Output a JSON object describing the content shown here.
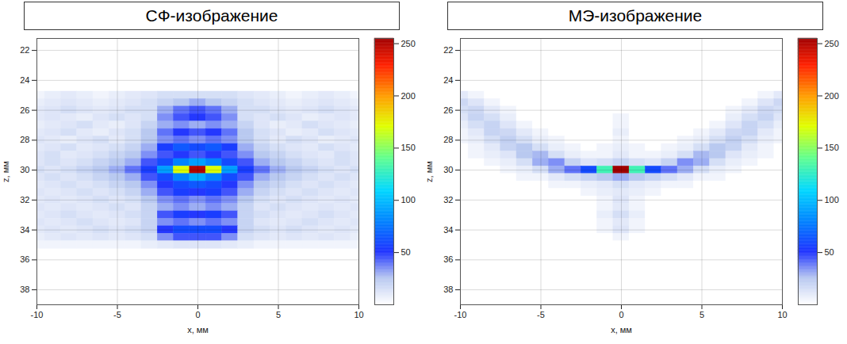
{
  "chart_data": [
    {
      "type": "heatmap",
      "title": "СФ-изображение",
      "x_label": "x, мм",
      "y_label": "z, мм",
      "xlim": [
        -10,
        10
      ],
      "ylim": [
        39,
        21.2
      ],
      "xticks": [
        -10,
        -5,
        0,
        5,
        10
      ],
      "yticks": [
        22,
        24,
        26,
        28,
        30,
        32,
        34,
        36,
        38
      ],
      "grid": true,
      "colorbar_lim": [
        0,
        255
      ],
      "colorbar_ticks": [
        50,
        100,
        150,
        200,
        250
      ],
      "x": [
        -10,
        -9,
        -8,
        -7,
        -6,
        -5,
        -4,
        -3,
        -2,
        -1,
        0,
        1,
        2,
        3,
        4,
        5,
        6,
        7,
        8,
        9,
        10
      ],
      "y": [
        25,
        25.5,
        26,
        26.5,
        27,
        27.5,
        28,
        28.5,
        29,
        29.5,
        30,
        30.5,
        31,
        31.5,
        32,
        32.5,
        33,
        33.5,
        34,
        34.5,
        35
      ],
      "cells": [
        [
          5,
          8,
          10,
          8,
          5,
          8,
          10,
          12,
          15,
          15,
          15,
          15,
          15,
          12,
          10,
          8,
          5,
          8,
          10,
          8,
          5
        ],
        [
          8,
          10,
          12,
          10,
          8,
          10,
          12,
          15,
          20,
          25,
          30,
          25,
          20,
          15,
          12,
          10,
          8,
          10,
          12,
          10,
          8
        ],
        [
          10,
          12,
          15,
          12,
          10,
          12,
          15,
          15,
          30,
          40,
          45,
          40,
          30,
          15,
          15,
          12,
          10,
          12,
          15,
          12,
          10
        ],
        [
          10,
          12,
          10,
          8,
          12,
          15,
          12,
          15,
          35,
          45,
          50,
          45,
          35,
          15,
          12,
          15,
          12,
          8,
          10,
          12,
          10
        ],
        [
          8,
          10,
          12,
          15,
          10,
          8,
          12,
          20,
          30,
          35,
          30,
          35,
          30,
          20,
          12,
          8,
          10,
          15,
          12,
          10,
          8
        ],
        [
          10,
          12,
          15,
          10,
          8,
          12,
          15,
          25,
          40,
          50,
          45,
          50,
          40,
          25,
          15,
          12,
          8,
          10,
          15,
          12,
          10
        ],
        [
          12,
          10,
          8,
          12,
          15,
          10,
          15,
          25,
          35,
          40,
          35,
          40,
          35,
          25,
          15,
          10,
          15,
          12,
          8,
          10,
          12
        ],
        [
          10,
          12,
          15,
          10,
          12,
          15,
          20,
          30,
          55,
          65,
          60,
          65,
          55,
          30,
          20,
          15,
          12,
          10,
          15,
          12,
          10
        ],
        [
          12,
          15,
          10,
          12,
          15,
          20,
          25,
          35,
          45,
          50,
          45,
          50,
          45,
          35,
          25,
          20,
          15,
          12,
          10,
          15,
          12
        ],
        [
          12,
          15,
          12,
          15,
          20,
          25,
          30,
          45,
          60,
          80,
          90,
          80,
          60,
          45,
          30,
          25,
          20,
          15,
          12,
          15,
          12
        ],
        [
          15,
          12,
          15,
          20,
          25,
          30,
          40,
          55,
          90,
          170,
          250,
          170,
          90,
          55,
          40,
          30,
          25,
          20,
          15,
          12,
          15
        ],
        [
          12,
          15,
          12,
          15,
          20,
          25,
          30,
          45,
          60,
          80,
          95,
          80,
          60,
          45,
          30,
          25,
          20,
          15,
          12,
          15,
          12
        ],
        [
          10,
          12,
          15,
          12,
          15,
          20,
          25,
          35,
          50,
          60,
          65,
          60,
          50,
          35,
          25,
          20,
          15,
          12,
          15,
          12,
          10
        ],
        [
          12,
          10,
          12,
          15,
          12,
          15,
          20,
          30,
          45,
          55,
          50,
          55,
          45,
          30,
          20,
          15,
          12,
          15,
          12,
          10,
          12
        ],
        [
          10,
          12,
          10,
          12,
          15,
          12,
          15,
          25,
          35,
          40,
          35,
          40,
          35,
          25,
          15,
          12,
          15,
          12,
          10,
          12,
          10
        ],
        [
          12,
          10,
          12,
          10,
          12,
          15,
          12,
          20,
          30,
          35,
          30,
          35,
          30,
          20,
          12,
          15,
          12,
          10,
          12,
          10,
          12
        ],
        [
          10,
          12,
          15,
          12,
          10,
          12,
          15,
          20,
          45,
          55,
          50,
          55,
          45,
          20,
          15,
          12,
          10,
          12,
          15,
          12,
          10
        ],
        [
          12,
          10,
          12,
          15,
          12,
          10,
          12,
          20,
          35,
          40,
          35,
          40,
          35,
          20,
          12,
          10,
          12,
          15,
          12,
          10,
          12
        ],
        [
          10,
          12,
          10,
          12,
          15,
          12,
          15,
          20,
          50,
          60,
          60,
          60,
          50,
          20,
          15,
          12,
          15,
          12,
          10,
          12,
          10
        ],
        [
          8,
          10,
          12,
          10,
          12,
          10,
          12,
          15,
          35,
          45,
          45,
          45,
          35,
          15,
          12,
          10,
          12,
          10,
          12,
          10,
          8
        ],
        [
          5,
          5,
          5,
          5,
          5,
          5,
          5,
          8,
          10,
          12,
          12,
          12,
          10,
          8,
          5,
          5,
          5,
          5,
          5,
          5,
          5
        ]
      ]
    },
    {
      "type": "heatmap",
      "title": "МЭ-изображение",
      "x_label": "x, мм",
      "y_label": "z, мм",
      "xlim": [
        -10,
        10
      ],
      "ylim": [
        39,
        21.2
      ],
      "xticks": [
        -10,
        -5,
        0,
        5,
        10
      ],
      "yticks": [
        22,
        24,
        26,
        28,
        30,
        32,
        34,
        36,
        38
      ],
      "grid": true,
      "colorbar_lim": [
        0,
        255
      ],
      "colorbar_ticks": [
        50,
        100,
        150,
        200,
        250
      ],
      "x": [
        -10,
        -9,
        -8,
        -7,
        -6,
        -5,
        -4,
        -3,
        -2,
        -1,
        0,
        1,
        2,
        3,
        4,
        5,
        6,
        7,
        8,
        9,
        10
      ],
      "y": [
        25,
        25.5,
        26,
        26.5,
        27,
        27.5,
        28,
        28.5,
        29,
        29.5,
        30,
        30.5,
        31,
        31.5,
        32,
        32.5,
        33,
        33.5,
        34,
        34.5,
        35
      ],
      "cells": [
        [
          10,
          5,
          0,
          0,
          0,
          0,
          0,
          0,
          0,
          0,
          0,
          0,
          0,
          0,
          0,
          0,
          0,
          0,
          0,
          5,
          10
        ],
        [
          18,
          12,
          5,
          0,
          0,
          0,
          0,
          0,
          0,
          0,
          0,
          0,
          0,
          0,
          0,
          0,
          0,
          0,
          5,
          12,
          18
        ],
        [
          15,
          18,
          10,
          5,
          0,
          0,
          0,
          0,
          0,
          0,
          0,
          0,
          0,
          0,
          0,
          0,
          0,
          5,
          10,
          18,
          15
        ],
        [
          12,
          20,
          15,
          8,
          0,
          0,
          0,
          0,
          0,
          0,
          5,
          0,
          0,
          0,
          0,
          0,
          0,
          8,
          15,
          20,
          12
        ],
        [
          8,
          15,
          20,
          12,
          5,
          0,
          0,
          0,
          0,
          0,
          5,
          0,
          0,
          0,
          0,
          0,
          5,
          12,
          20,
          15,
          8
        ],
        [
          5,
          10,
          20,
          18,
          10,
          5,
          0,
          0,
          0,
          0,
          8,
          0,
          0,
          0,
          0,
          5,
          10,
          18,
          20,
          10,
          5
        ],
        [
          5,
          8,
          15,
          22,
          15,
          8,
          5,
          0,
          0,
          0,
          5,
          0,
          0,
          0,
          5,
          8,
          15,
          22,
          15,
          8,
          5
        ],
        [
          0,
          5,
          10,
          20,
          25,
          15,
          8,
          5,
          0,
          5,
          8,
          5,
          0,
          5,
          8,
          15,
          25,
          20,
          10,
          5,
          0
        ],
        [
          0,
          5,
          8,
          12,
          25,
          28,
          15,
          8,
          5,
          5,
          10,
          5,
          5,
          8,
          15,
          28,
          25,
          12,
          8,
          5,
          0
        ],
        [
          0,
          0,
          5,
          8,
          15,
          30,
          35,
          20,
          12,
          15,
          20,
          15,
          12,
          20,
          35,
          30,
          15,
          8,
          5,
          0,
          0
        ],
        [
          0,
          0,
          0,
          5,
          8,
          15,
          30,
          40,
          60,
          130,
          255,
          130,
          60,
          40,
          30,
          15,
          8,
          5,
          0,
          0,
          0
        ],
        [
          0,
          0,
          0,
          0,
          5,
          5,
          10,
          15,
          20,
          25,
          30,
          25,
          20,
          15,
          10,
          5,
          5,
          0,
          0,
          0,
          0
        ],
        [
          0,
          0,
          0,
          0,
          0,
          0,
          5,
          5,
          8,
          10,
          15,
          10,
          8,
          5,
          5,
          0,
          0,
          0,
          0,
          0,
          0
        ],
        [
          0,
          0,
          0,
          0,
          0,
          0,
          0,
          0,
          5,
          8,
          10,
          8,
          5,
          0,
          0,
          0,
          0,
          0,
          0,
          0,
          0
        ],
        [
          0,
          0,
          0,
          0,
          0,
          0,
          0,
          0,
          0,
          5,
          12,
          5,
          0,
          0,
          0,
          0,
          0,
          0,
          0,
          0,
          0
        ],
        [
          0,
          0,
          0,
          0,
          0,
          0,
          0,
          0,
          0,
          5,
          10,
          5,
          0,
          0,
          0,
          0,
          0,
          0,
          0,
          0,
          0
        ],
        [
          0,
          0,
          0,
          0,
          0,
          0,
          0,
          0,
          0,
          8,
          15,
          8,
          0,
          0,
          0,
          0,
          0,
          0,
          0,
          0,
          0
        ],
        [
          0,
          0,
          0,
          0,
          0,
          0,
          0,
          0,
          0,
          5,
          10,
          5,
          0,
          0,
          0,
          0,
          0,
          0,
          0,
          0,
          0
        ],
        [
          0,
          0,
          0,
          0,
          0,
          0,
          0,
          0,
          0,
          5,
          12,
          5,
          0,
          0,
          0,
          0,
          0,
          0,
          0,
          0,
          0
        ],
        [
          0,
          0,
          0,
          0,
          0,
          0,
          0,
          0,
          0,
          0,
          5,
          0,
          0,
          0,
          0,
          0,
          0,
          0,
          0,
          0,
          0
        ],
        [
          0,
          0,
          0,
          0,
          0,
          0,
          0,
          0,
          0,
          0,
          0,
          0,
          0,
          0,
          0,
          0,
          0,
          0,
          0,
          0,
          0
        ]
      ]
    }
  ]
}
